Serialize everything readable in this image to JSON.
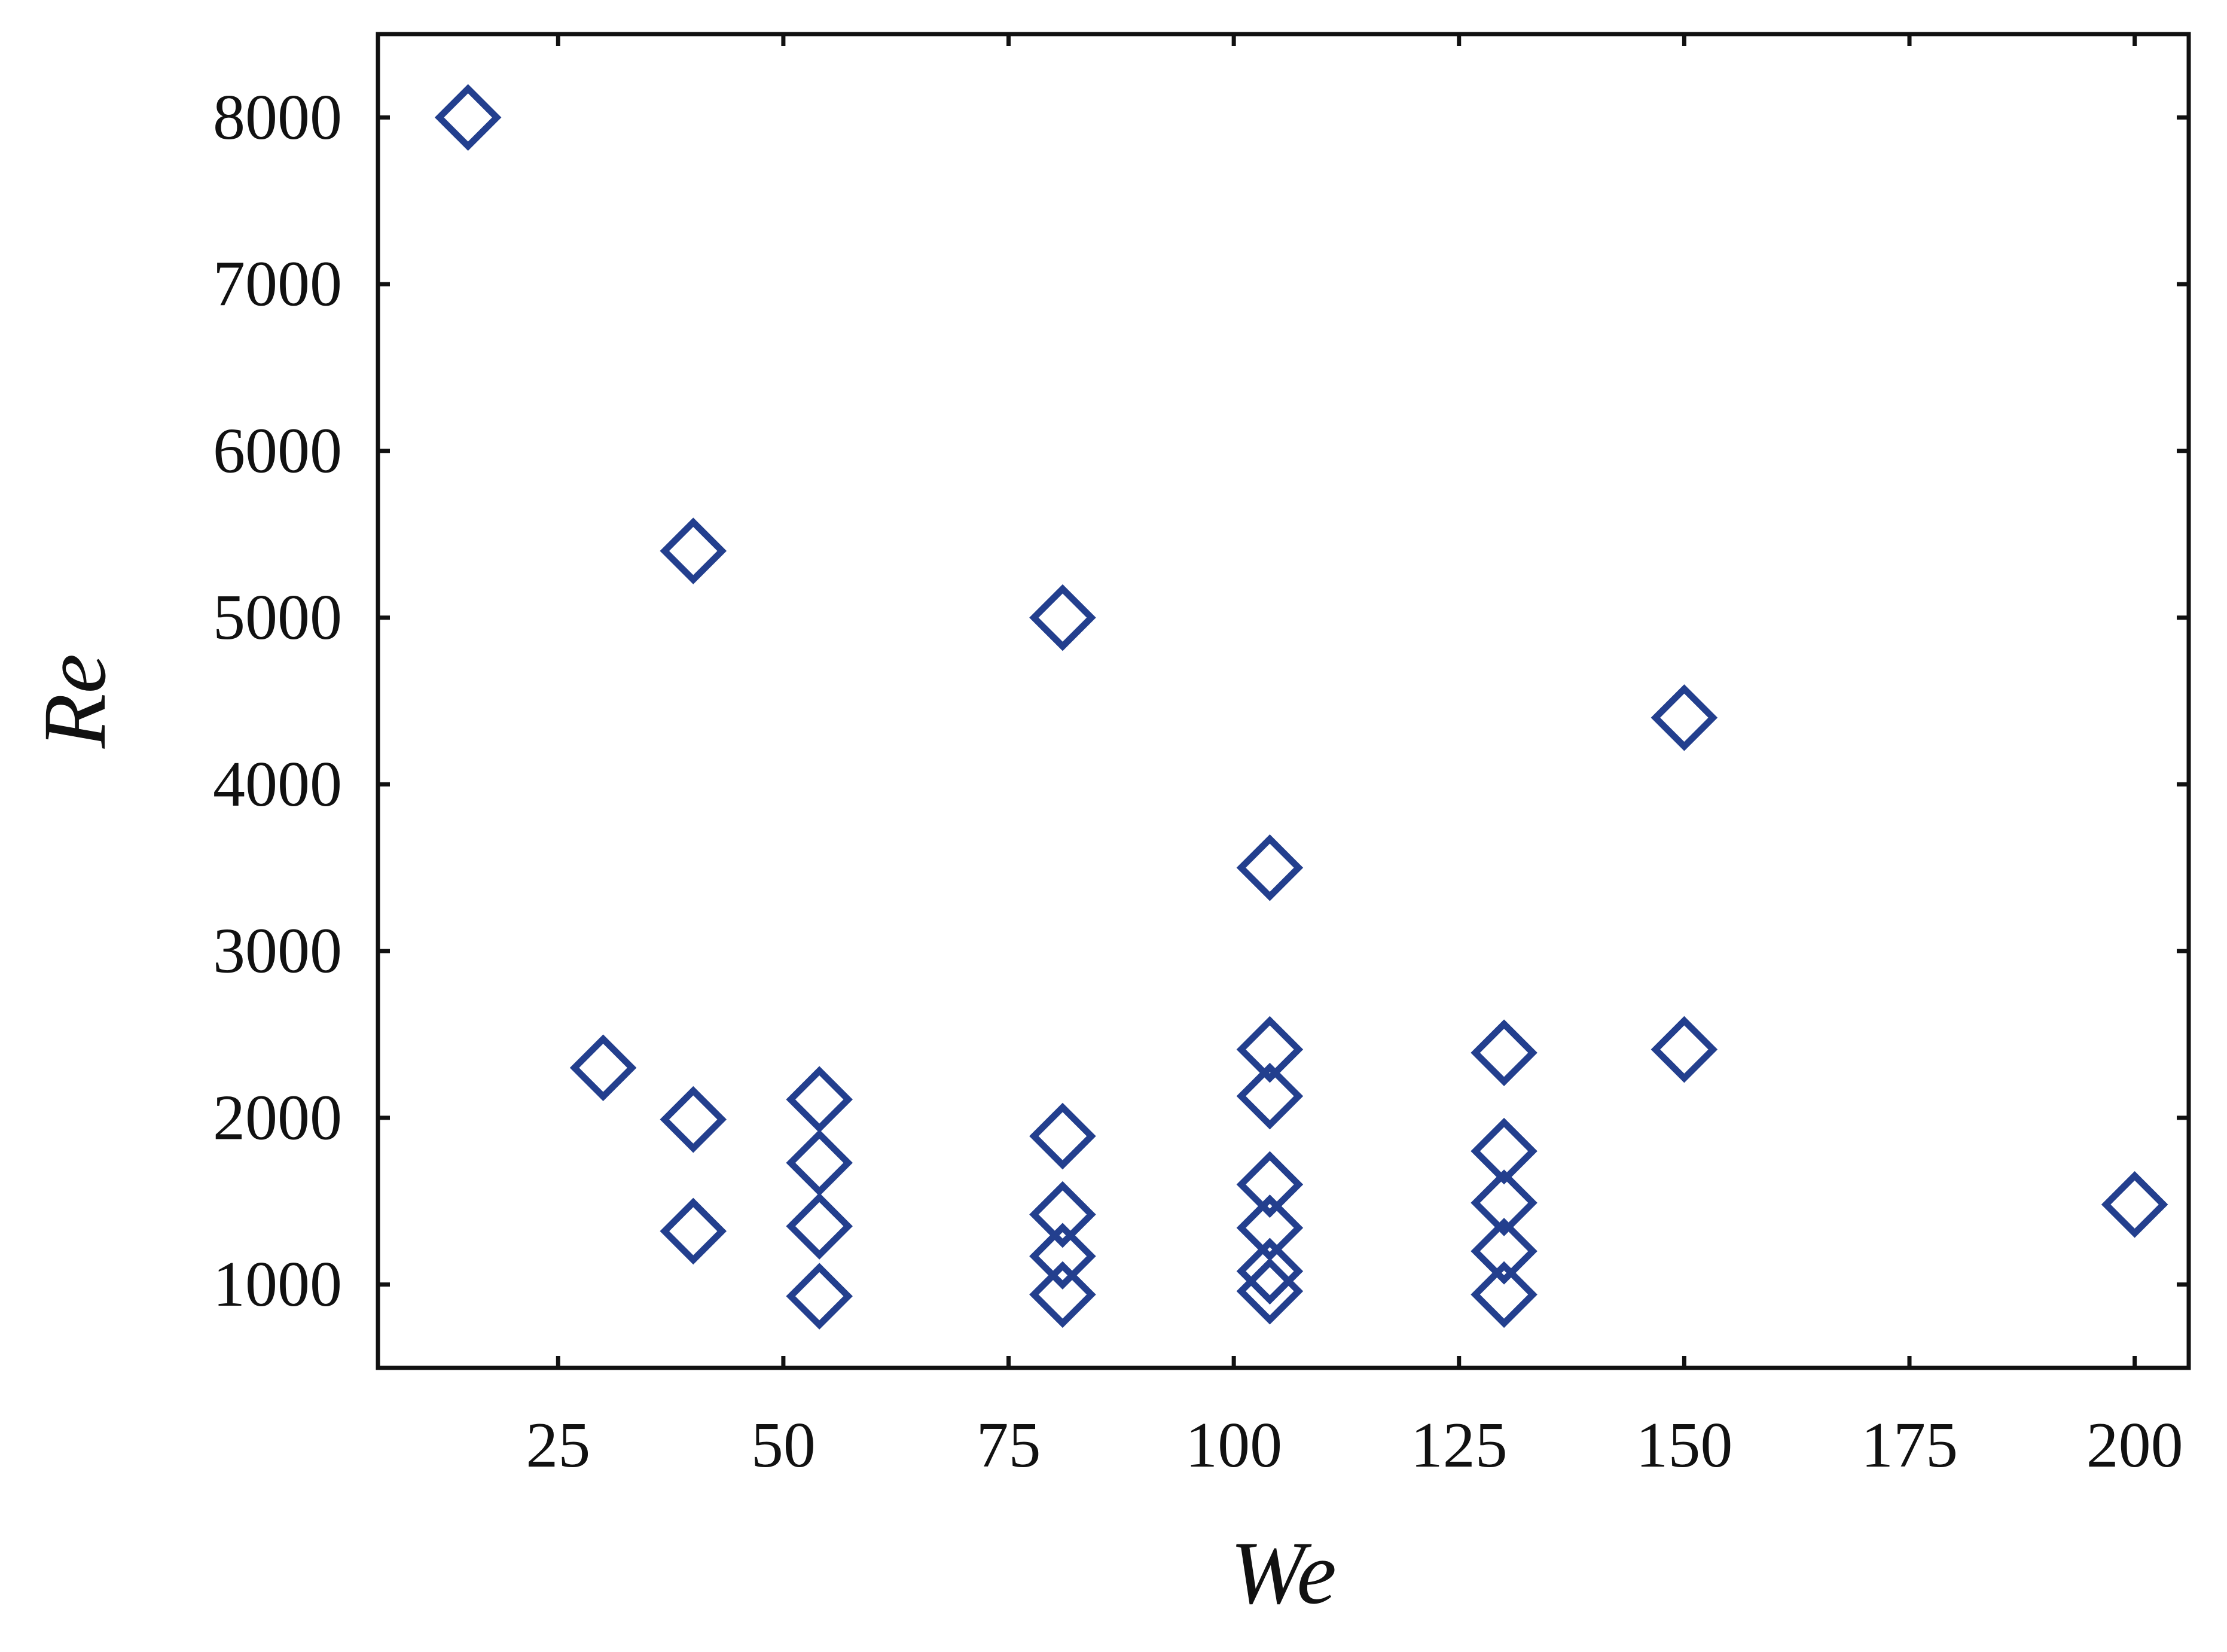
{
  "chart_data": {
    "type": "scatter",
    "title": "",
    "xlabel": "We",
    "ylabel": "Re",
    "xlim": [
      5,
      206
    ],
    "ylim": [
      500,
      8500
    ],
    "xticks": [
      25,
      50,
      75,
      100,
      125,
      150,
      175,
      200
    ],
    "yticks": [
      1000,
      2000,
      3000,
      4000,
      5000,
      6000,
      7000,
      8000
    ],
    "grid": false,
    "legend": "none",
    "marker": "diamond-open",
    "colors": {
      "marker": "#233f8e",
      "axis": "#111111"
    },
    "series": [
      {
        "points": [
          {
            "x": 15,
            "y": 8000
          },
          {
            "x": 30,
            "y": 2300
          },
          {
            "x": 40,
            "y": 5400
          },
          {
            "x": 40,
            "y": 1990
          },
          {
            "x": 40,
            "y": 1320
          },
          {
            "x": 54,
            "y": 2110
          },
          {
            "x": 54,
            "y": 1730
          },
          {
            "x": 54,
            "y": 1350
          },
          {
            "x": 54,
            "y": 930
          },
          {
            "x": 81,
            "y": 5000
          },
          {
            "x": 81,
            "y": 1890
          },
          {
            "x": 81,
            "y": 1420
          },
          {
            "x": 81,
            "y": 1170
          },
          {
            "x": 81,
            "y": 940
          },
          {
            "x": 104,
            "y": 3500
          },
          {
            "x": 104,
            "y": 2410
          },
          {
            "x": 104,
            "y": 2130
          },
          {
            "x": 104,
            "y": 1600
          },
          {
            "x": 104,
            "y": 1340
          },
          {
            "x": 104,
            "y": 1080
          },
          {
            "x": 104,
            "y": 960
          },
          {
            "x": 130,
            "y": 2390
          },
          {
            "x": 130,
            "y": 1800
          },
          {
            "x": 130,
            "y": 1490
          },
          {
            "x": 130,
            "y": 1200
          },
          {
            "x": 130,
            "y": 940
          },
          {
            "x": 150,
            "y": 4400
          },
          {
            "x": 150,
            "y": 2410
          },
          {
            "x": 200,
            "y": 1480
          }
        ]
      }
    ]
  }
}
